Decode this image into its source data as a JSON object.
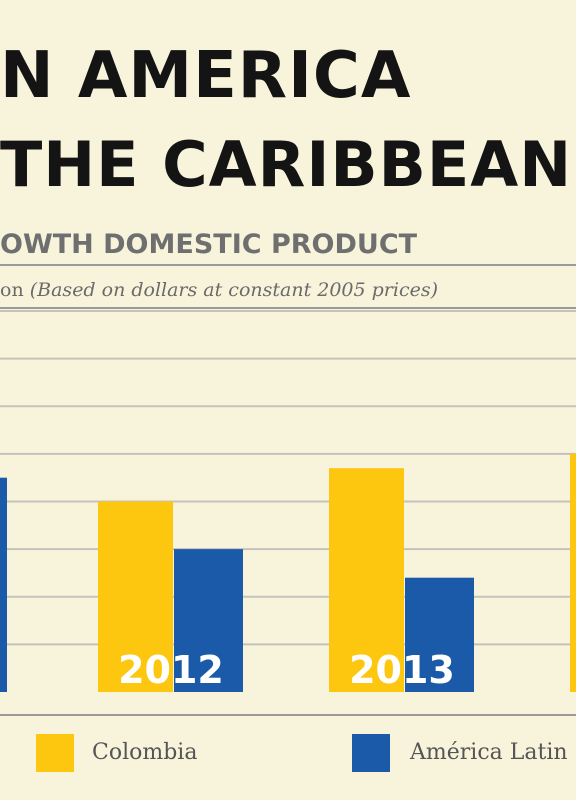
{
  "header": {
    "title_line1": "N AMERICA",
    "title_line2": "THE CARIBBEAN",
    "subtitle": "OWTH DOMESTIC PRODUCT",
    "unit_prefix": "on",
    "unit_note": "(Based on dollars at constant 2005 prices)"
  },
  "colors": {
    "background": "#f8f4dc",
    "gridline": "#c4c2bb",
    "colombia": "#fdc70f",
    "latam": "#1a5aa8",
    "title": "#141414"
  },
  "chart_data": {
    "type": "bar",
    "title": "",
    "xlabel": "",
    "ylabel": "",
    "ylim": [
      0,
      8
    ],
    "grid": true,
    "legend_position": "bottom",
    "categories": [
      "",
      "2012",
      "2013",
      ""
    ],
    "series": [
      {
        "name": "Colombia",
        "color": "#fdc70f",
        "values": [
          null,
          4.0,
          4.7,
          5.0
        ]
      },
      {
        "name": "América Latin",
        "color": "#1a5aa8",
        "values": [
          4.5,
          3.0,
          2.4,
          null
        ]
      }
    ]
  }
}
